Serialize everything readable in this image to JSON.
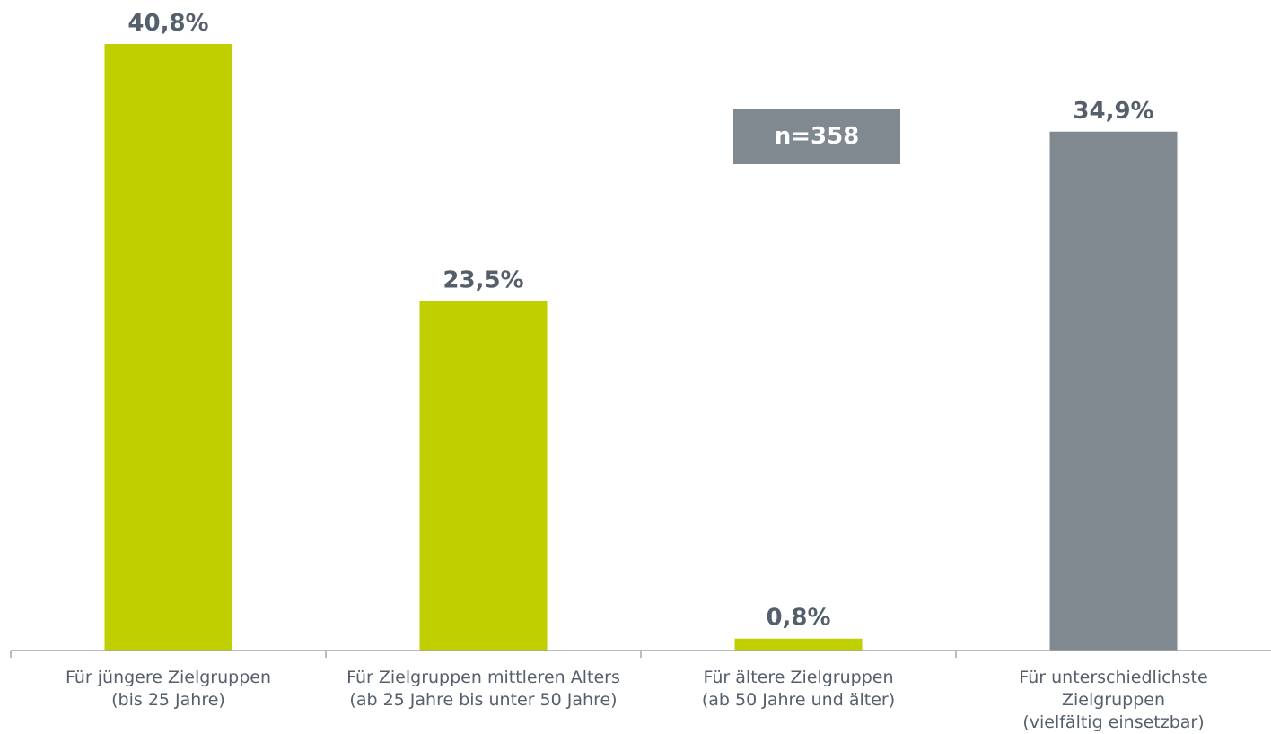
{
  "chart_data": {
    "type": "bar",
    "categories": [
      [
        "Für jüngere Zielgruppen",
        "(bis 25 Jahre)"
      ],
      [
        "Für Zielgruppen mittleren Alters",
        "(ab 25 Jahre bis unter 50 Jahre)"
      ],
      [
        "Für ältere Zielgruppen",
        "(ab 50 Jahre und älter)"
      ],
      [
        "Für unterschiedlichste",
        "Zielgruppen",
        "(vielfältig einsetzbar)"
      ]
    ],
    "values": [
      40.8,
      23.5,
      0.8,
      34.9
    ],
    "value_labels": [
      "40,8%",
      "23,5%",
      "0,8%",
      "34,9%"
    ],
    "bar_colors": [
      "#c0cf00",
      "#c0cf00",
      "#c0cf00",
      "#808890"
    ],
    "ylim": [
      0,
      44.2
    ],
    "grid": false,
    "annotation": "n=358",
    "annotation_color": "#808890",
    "label_color": "#555f6b",
    "axis_color": "#a6a6a6"
  }
}
